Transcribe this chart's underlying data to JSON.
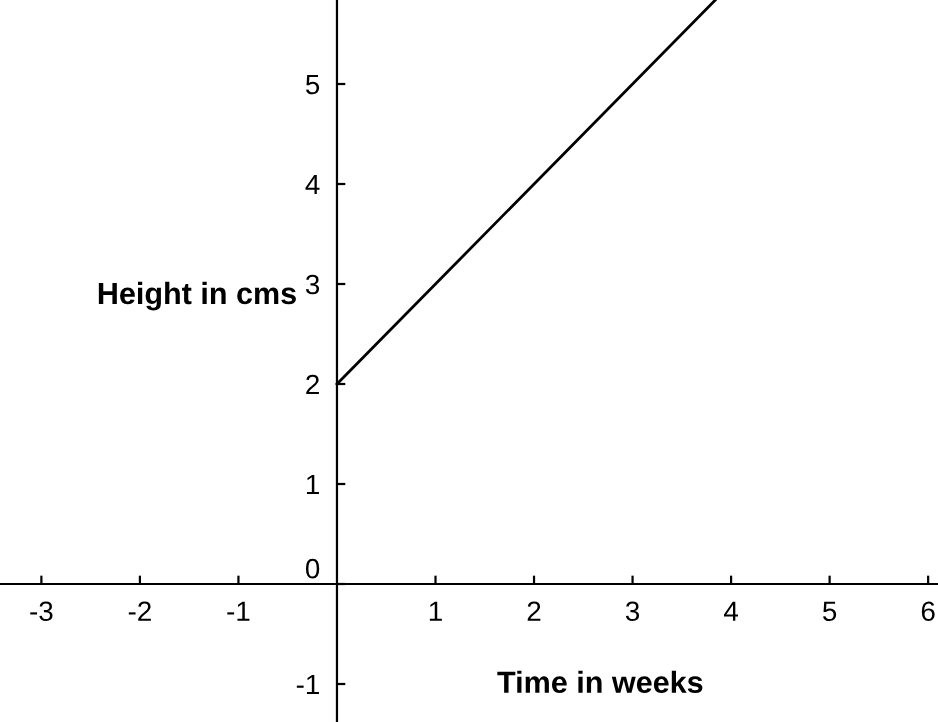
{
  "chart_data": {
    "type": "line",
    "xlabel": "Time in weeks",
    "ylabel": "Height in cms",
    "x": [
      0,
      3.84
    ],
    "series": [
      {
        "color": "#000000",
        "values": [
          2,
          5.84
        ]
      }
    ],
    "xlim": [
      -3.42,
      6.1
    ],
    "ylim": [
      -1.38,
      5.84
    ],
    "xticks": [
      -3,
      -2,
      -1,
      1,
      2,
      3,
      4,
      5,
      6
    ],
    "yticks": [
      -1,
      0,
      1,
      2,
      3,
      4,
      5
    ],
    "grid": false,
    "legend": false,
    "marker": "none",
    "line_style": "solid"
  }
}
